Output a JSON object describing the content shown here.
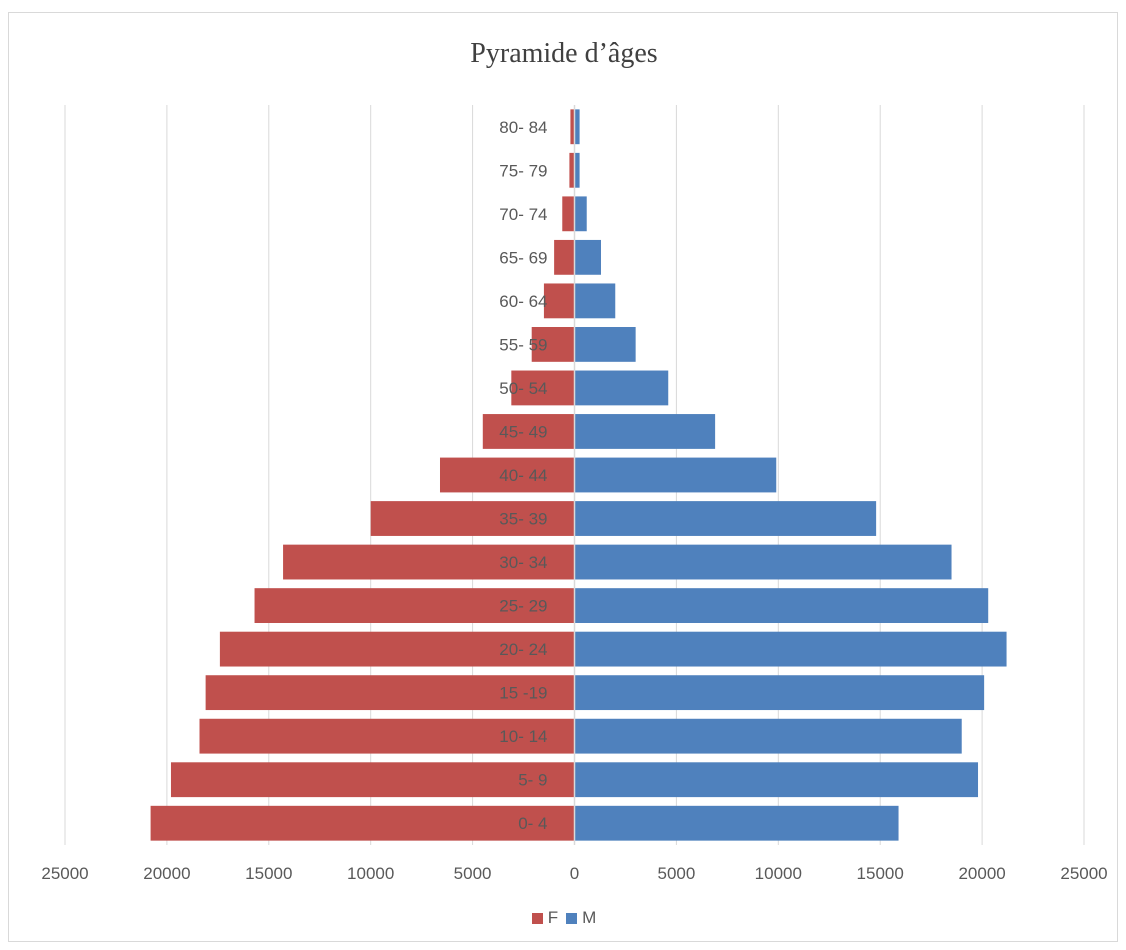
{
  "chart_data": {
    "type": "bar",
    "orientation": "horizontal",
    "title": "Pyramide d’âges",
    "categories": [
      "0- 4",
      "5- 9",
      "10- 14",
      "15 -19",
      "20- 24",
      "25- 29",
      "30- 34",
      "35- 39",
      "40- 44",
      "45- 49",
      "50- 54",
      "55- 59",
      "60- 64",
      "65- 69",
      "70- 74",
      "75- 79",
      "80- 84"
    ],
    "series": [
      {
        "name": "F",
        "color": "#c0504d",
        "values": [
          20800,
          19800,
          18400,
          18100,
          17400,
          15700,
          14300,
          10000,
          6600,
          4500,
          3100,
          2100,
          1500,
          1000,
          600,
          250,
          200
        ]
      },
      {
        "name": "M",
        "color": "#4f81bd",
        "values": [
          15900,
          19800,
          19000,
          20100,
          21200,
          20300,
          18500,
          14800,
          9900,
          6900,
          4600,
          3000,
          2000,
          1300,
          600,
          250,
          250
        ]
      }
    ],
    "xlim": [
      -25000,
      25000
    ],
    "x_ticks": [
      -25000,
      -20000,
      -15000,
      -10000,
      -5000,
      0,
      5000,
      10000,
      15000,
      20000,
      25000
    ],
    "x_tick_labels": [
      "25000",
      "20000",
      "15000",
      "10000",
      "5000",
      "0",
      "5000",
      "10000",
      "15000",
      "20000",
      "25000"
    ],
    "grid": true,
    "legend": "bottom"
  }
}
